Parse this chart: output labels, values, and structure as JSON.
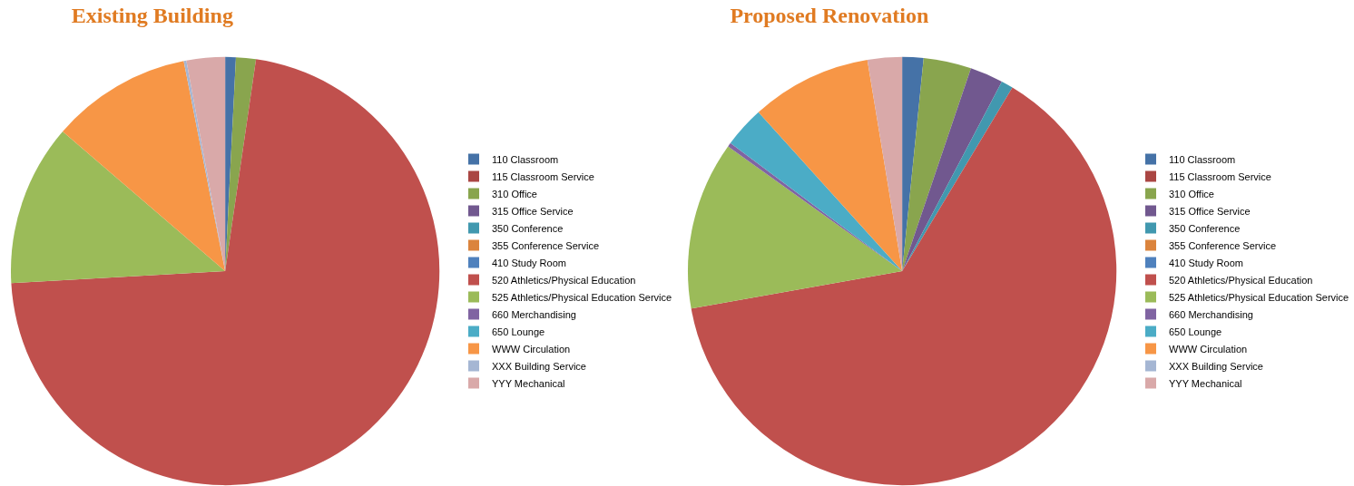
{
  "chart_data": [
    {
      "type": "pie",
      "title": "Existing Building",
      "legend": "right",
      "categories": [
        "110 Classroom",
        "115 Classroom Service",
        "310 Office",
        "315 Office Service",
        "350 Conference",
        "355 Conference Service",
        "410 Study Room",
        "520 Athletics/Physical Education",
        "525 Athletics/Physical Education Service",
        "660 Merchandising",
        "650 Lounge",
        "WWW Circulation",
        "XXX Building Service",
        "YYY Mechanical"
      ],
      "values": [
        0.8,
        0,
        1.5,
        0,
        0,
        0,
        0,
        71.8,
        12.2,
        0,
        0,
        10.6,
        0.2,
        2.9
      ],
      "colors": [
        "#4572a7",
        "#aa4643",
        "#89a54e",
        "#71588f",
        "#4198af",
        "#db843d",
        "#4f81bd",
        "#c0504d",
        "#9bbb59",
        "#8064a2",
        "#4bacc6",
        "#f79646",
        "#a5b6d3",
        "#d9a9a9"
      ]
    },
    {
      "type": "pie",
      "title": "Proposed Renovation",
      "legend": "right",
      "categories": [
        "110 Classroom",
        "115 Classroom Service",
        "310 Office",
        "315 Office Service",
        "350 Conference",
        "355 Conference Service",
        "410 Study Room",
        "520 Athletics/Physical Education",
        "525 Athletics/Physical Education Service",
        "660 Merchandising",
        "650 Lounge",
        "WWW Circulation",
        "XXX Building Service",
        "YYY Mechanical"
      ],
      "values": [
        1.6,
        0,
        3.6,
        2.5,
        0.9,
        0,
        0,
        63.6,
        12.7,
        0.3,
        3.1,
        9.1,
        0,
        2.6
      ],
      "colors": [
        "#4572a7",
        "#aa4643",
        "#89a54e",
        "#71588f",
        "#4198af",
        "#db843d",
        "#4f81bd",
        "#c0504d",
        "#9bbb59",
        "#8064a2",
        "#4bacc6",
        "#f79646",
        "#a5b6d3",
        "#d9a9a9"
      ]
    }
  ]
}
